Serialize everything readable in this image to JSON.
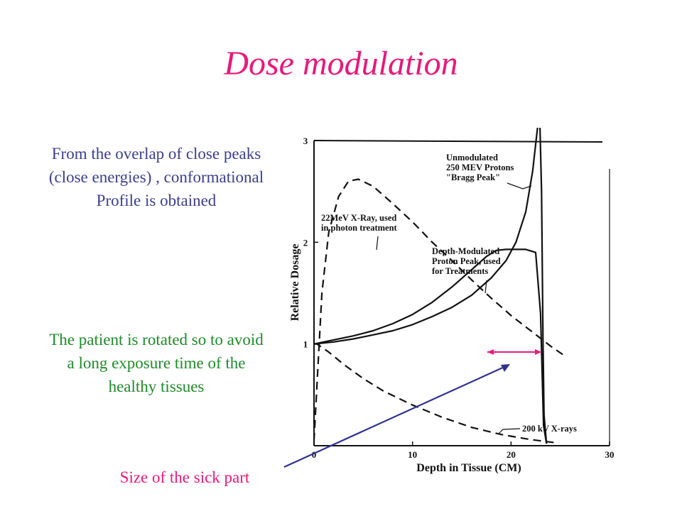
{
  "title": "Dose modulation",
  "notes": {
    "overlap": [
      "From the overlap of close peaks",
      "(close energies) , conformational",
      "Profile is obtained"
    ],
    "rotation": [
      "The patient is rotated so to avoid",
      "a long exposure time of the",
      "healthy tissues"
    ],
    "size": "Size of the sick part"
  },
  "colors": {
    "title": "#e8197a",
    "blue_text": "#3a3e8c",
    "green_text": "#1f8a2a",
    "arrow_blue": "#2e3192",
    "arrow_pink": "#e8197a"
  },
  "chart_data": {
    "type": "line",
    "xlabel": "Depth in Tissue (CM)",
    "ylabel": "Relative Dosage",
    "xlim": [
      0,
      30
    ],
    "ylim": [
      0,
      3
    ],
    "x_ticks": [
      "0",
      "10",
      "20",
      "30"
    ],
    "y_ticks": [
      "1",
      "2",
      "3"
    ],
    "grid": false,
    "series": [
      {
        "name": "22MeV X-Ray, used in photon treatment",
        "style": "dashed",
        "x": [
          0,
          0.3,
          0.8,
          1.5,
          2.5,
          3.5,
          4.5,
          6,
          8,
          10,
          12,
          14,
          16,
          18,
          20,
          22,
          24,
          25.5
        ],
        "y": [
          0.05,
          0.6,
          1.5,
          2.1,
          2.45,
          2.6,
          2.62,
          2.55,
          2.38,
          2.2,
          2.0,
          1.82,
          1.63,
          1.45,
          1.28,
          1.13,
          0.98,
          0.88
        ]
      },
      {
        "name": "200 kV X-rays",
        "style": "dashed",
        "x": [
          0,
          0.3,
          1.5,
          3,
          5,
          7,
          10,
          13,
          16,
          19,
          22,
          24.5
        ],
        "y": [
          1.0,
          1.0,
          0.92,
          0.8,
          0.66,
          0.54,
          0.4,
          0.28,
          0.18,
          0.11,
          0.06,
          0.03
        ]
      },
      {
        "name": "Unmodulated 250 MEV Protons \"Bragg Peak\"",
        "style": "solid",
        "x": [
          0,
          2,
          4,
          6,
          8,
          10,
          12,
          14,
          16,
          18,
          19.5,
          20.5,
          21.5,
          22.2,
          22.6,
          22.9,
          23.1,
          23.25,
          23.35,
          23.6
        ],
        "y": [
          1.0,
          1.02,
          1.05,
          1.09,
          1.13,
          1.19,
          1.27,
          1.36,
          1.48,
          1.65,
          1.82,
          2.0,
          2.3,
          2.7,
          3.05,
          3.3,
          2.5,
          1.0,
          0.3,
          0.02
        ]
      },
      {
        "name": "Depth-Modulated Proton Peak, used for Treatments",
        "style": "solid",
        "x": [
          0,
          2,
          4,
          6,
          8,
          10,
          12,
          14,
          16,
          17.5,
          18.5,
          19.5,
          20.5,
          21.5,
          22.5,
          23.0,
          23.3,
          23.6
        ],
        "y": [
          1.0,
          1.04,
          1.08,
          1.13,
          1.2,
          1.29,
          1.41,
          1.56,
          1.73,
          1.86,
          1.92,
          1.93,
          1.93,
          1.93,
          1.9,
          1.3,
          0.2,
          0.02
        ]
      }
    ],
    "annotations": [
      {
        "lines": [
          "Unmodulated",
          "250 MEV Protons",
          "\"Bragg Peak\""
        ]
      },
      {
        "lines": [
          "22MeV X-Ray, used",
          "in photon treatment"
        ]
      },
      {
        "lines": [
          "Depth-Modulated",
          "Proton Peak,  used",
          "for Treatments"
        ]
      },
      {
        "lines": [
          "200 kV X-rays"
        ]
      }
    ]
  }
}
